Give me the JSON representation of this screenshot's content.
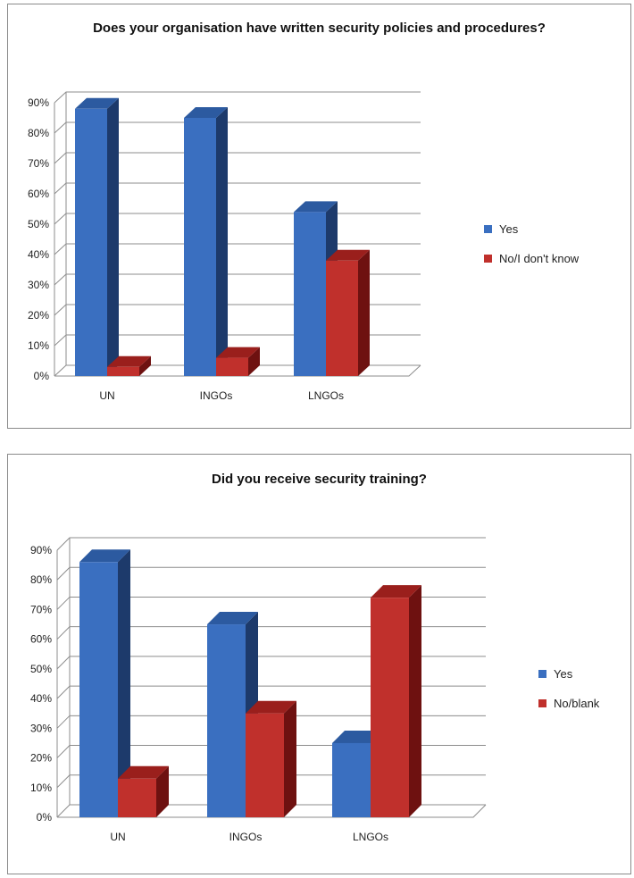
{
  "colors": {
    "yes_front": "#3a6fc0",
    "yes_side": "#1d3a6b",
    "yes_top": "#2c5aa0",
    "no_front": "#c0302c",
    "no_side": "#6e1110",
    "no_top": "#9a1f1c",
    "grid": "#8c8c8c"
  },
  "chart_data": [
    {
      "type": "bar",
      "title": "Does your organisation have written security policies and procedures?",
      "categories": [
        "UN",
        "INGOs",
        "LNGOs"
      ],
      "series": [
        {
          "name": "Yes",
          "values": [
            88,
            85,
            54
          ]
        },
        {
          "name": "No/I don't know",
          "values": [
            3,
            6,
            38
          ]
        }
      ],
      "yticks": [
        "0%",
        "10%",
        "20%",
        "30%",
        "40%",
        "50%",
        "60%",
        "70%",
        "80%",
        "90%"
      ],
      "ylim": [
        0,
        90
      ],
      "grid": true,
      "legend": "right"
    },
    {
      "type": "bar",
      "title": "Did you receive security training?",
      "categories": [
        "UN",
        "INGOs",
        "LNGOs"
      ],
      "series": [
        {
          "name": "Yes",
          "values": [
            86,
            65,
            25
          ]
        },
        {
          "name": "No/blank",
          "values": [
            13,
            35,
            74
          ]
        }
      ],
      "yticks": [
        "0%",
        "10%",
        "20%",
        "30%",
        "40%",
        "50%",
        "60%",
        "70%",
        "80%",
        "90%"
      ],
      "ylim": [
        0,
        90
      ],
      "grid": true,
      "legend": "right"
    }
  ]
}
